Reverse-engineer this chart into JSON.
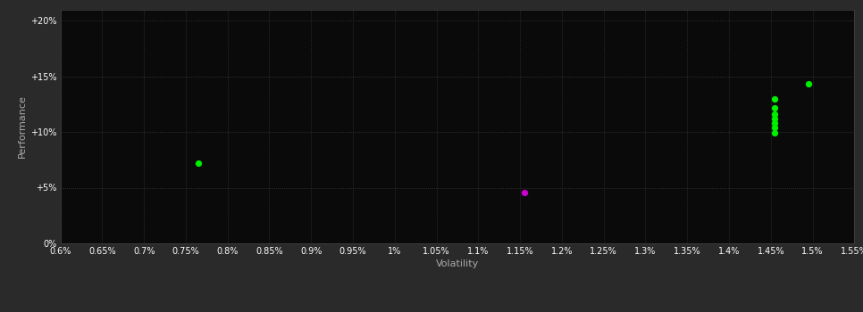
{
  "background_color": "#2a2a2a",
  "plot_bg_color": "#0a0a0a",
  "grid_color": "#3a3a3a",
  "xlabel": "Volatility",
  "ylabel": "Performance",
  "xlim": [
    0.006,
    0.0155
  ],
  "ylim": [
    0.0,
    0.21
  ],
  "xticks": [
    0.006,
    0.0065,
    0.007,
    0.0075,
    0.008,
    0.0085,
    0.009,
    0.0095,
    0.01,
    0.0105,
    0.011,
    0.0115,
    0.012,
    0.0125,
    0.013,
    0.0135,
    0.014,
    0.0145,
    0.015,
    0.0155
  ],
  "xtick_labels": [
    "0.6%",
    "0.65%",
    "0.7%",
    "0.75%",
    "0.8%",
    "0.85%",
    "0.9%",
    "0.95%",
    "1%",
    "1.05%",
    "1.1%",
    "1.15%",
    "1.2%",
    "1.25%",
    "1.3%",
    "1.35%",
    "1.4%",
    "1.45%",
    "1.5%",
    "1.55%"
  ],
  "yticks": [
    0.0,
    0.05,
    0.1,
    0.15,
    0.2
  ],
  "ytick_labels": [
    "0%",
    "+5%",
    "+10%",
    "+15%",
    "+20%"
  ],
  "green_points": [
    [
      0.00765,
      0.072
    ],
    [
      0.01455,
      0.13
    ],
    [
      0.01455,
      0.122
    ],
    [
      0.01455,
      0.116
    ],
    [
      0.01455,
      0.112
    ],
    [
      0.01455,
      0.108
    ],
    [
      0.01455,
      0.104
    ],
    [
      0.01455,
      0.099
    ],
    [
      0.01495,
      0.143
    ]
  ],
  "magenta_points": [
    [
      0.01155,
      0.046
    ]
  ],
  "point_size": 18,
  "green_color": "#00ee00",
  "magenta_color": "#cc00cc",
  "tick_color": "#ffffff",
  "label_color": "#aaaaaa",
  "tick_fontsize": 7,
  "label_fontsize": 8
}
